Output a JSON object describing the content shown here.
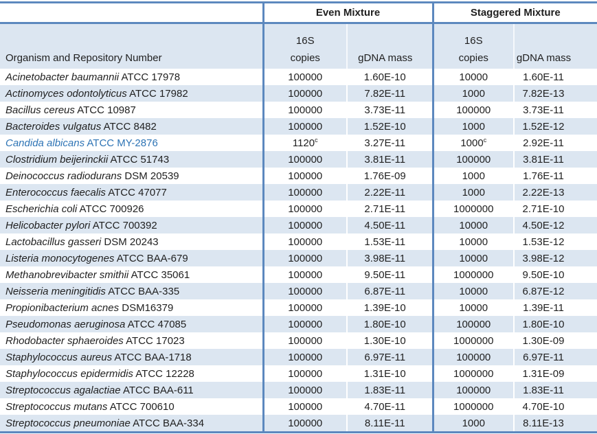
{
  "table": {
    "group_headers": {
      "even": "Even Mixture",
      "staggered": "Staggered Mixture"
    },
    "sub_headers": {
      "organism": "Organism and Repository Number",
      "copies_top": "16S",
      "copies_bottom": "copies",
      "gdna": "gDNA mass"
    },
    "colors": {
      "banding": "#dce6f1",
      "border": "#5c88be",
      "highlight_text": "#2e74b5",
      "text": "#1f1f1f"
    },
    "rows": [
      {
        "species": "Acinetobacter baumannii",
        "repository": "ATCC 17978",
        "even_copies": "100000",
        "even_gdna": "1.60E-10",
        "stag_copies": "10000",
        "stag_gdna": "1.60E-11",
        "highlight": false
      },
      {
        "species": "Actinomyces odontolyticus",
        "repository": "ATCC 17982",
        "even_copies": "100000",
        "even_gdna": "7.82E-11",
        "stag_copies": "1000",
        "stag_gdna": "7.82E-13",
        "highlight": false
      },
      {
        "species": "Bacillus cereus",
        "repository": "ATCC 10987",
        "even_copies": "100000",
        "even_gdna": "3.73E-11",
        "stag_copies": "100000",
        "stag_gdna": "3.73E-11",
        "highlight": false
      },
      {
        "species": "Bacteroides vulgatus",
        "repository": "ATCC 8482",
        "even_copies": "100000",
        "even_gdna": "1.52E-10",
        "stag_copies": "1000",
        "stag_gdna": "1.52E-12",
        "highlight": false
      },
      {
        "species": "Candida albicans",
        "repository": "ATCC MY-2876",
        "even_copies": "1120",
        "even_copies_sup": "c",
        "even_gdna": "3.27E-11",
        "stag_copies": "1000",
        "stag_copies_sup": "c",
        "stag_gdna": "2.92E-11",
        "highlight": true
      },
      {
        "species": "Clostridium beijerinckii",
        "repository": "ATCC 51743",
        "even_copies": "100000",
        "even_gdna": "3.81E-11",
        "stag_copies": "100000",
        "stag_gdna": "3.81E-11",
        "highlight": false
      },
      {
        "species": "Deinococcus radiodurans",
        "repository": "DSM 20539",
        "even_copies": "100000",
        "even_gdna": "1.76E-09",
        "stag_copies": "1000",
        "stag_gdna": "1.76E-11",
        "highlight": false
      },
      {
        "species": "Enterococcus faecalis",
        "repository": "ATCC 47077",
        "even_copies": "100000",
        "even_gdna": "2.22E-11",
        "stag_copies": "1000",
        "stag_gdna": "2.22E-13",
        "highlight": false
      },
      {
        "species": "Escherichia coli",
        "repository": "ATCC 700926",
        "even_copies": "100000",
        "even_gdna": "2.71E-11",
        "stag_copies": "1000000",
        "stag_gdna": "2.71E-10",
        "highlight": false
      },
      {
        "species": "Helicobacter pylori",
        "repository": "ATCC 700392",
        "even_copies": "100000",
        "even_gdna": "4.50E-11",
        "stag_copies": "10000",
        "stag_gdna": "4.50E-12",
        "highlight": false
      },
      {
        "species": "Lactobacillus gasseri",
        "repository": "DSM 20243",
        "even_copies": "100000",
        "even_gdna": "1.53E-11",
        "stag_copies": "10000",
        "stag_gdna": "1.53E-12",
        "highlight": false
      },
      {
        "species": "Listeria monocytogenes",
        "repository": "ATCC BAA-679",
        "even_copies": "100000",
        "even_gdna": "3.98E-11",
        "stag_copies": "10000",
        "stag_gdna": "3.98E-12",
        "highlight": false
      },
      {
        "species": "Methanobrevibacter smithii",
        "repository": "ATCC 35061",
        "even_copies": "100000",
        "even_gdna": "9.50E-11",
        "stag_copies": "1000000",
        "stag_gdna": "9.50E-10",
        "highlight": false
      },
      {
        "species": "Neisseria meningitidis",
        "repository": "ATCC BAA-335",
        "even_copies": "100000",
        "even_gdna": "6.87E-11",
        "stag_copies": "10000",
        "stag_gdna": "6.87E-12",
        "highlight": false
      },
      {
        "species": "Propionibacterium acnes",
        "repository": "DSM16379",
        "even_copies": "100000",
        "even_gdna": "1.39E-10",
        "stag_copies": "10000",
        "stag_gdna": "1.39E-11",
        "highlight": false
      },
      {
        "species": "Pseudomonas aeruginosa",
        "repository": "ATCC 47085",
        "even_copies": "100000",
        "even_gdna": "1.80E-10",
        "stag_copies": "100000",
        "stag_gdna": "1.80E-10",
        "highlight": false
      },
      {
        "species": "Rhodobacter sphaeroides",
        "repository": "ATCC 17023",
        "even_copies": "100000",
        "even_gdna": "1.30E-10",
        "stag_copies": "1000000",
        "stag_gdna": "1.30E-09",
        "highlight": false
      },
      {
        "species": "Staphylococcus aureus",
        "repository": "ATCC BAA-1718",
        "even_copies": "100000",
        "even_gdna": "6.97E-11",
        "stag_copies": "100000",
        "stag_gdna": "6.97E-11",
        "highlight": false
      },
      {
        "species": "Staphylococcus epidermidis",
        "repository": "ATCC 12228",
        "even_copies": "100000",
        "even_gdna": "1.31E-10",
        "stag_copies": "1000000",
        "stag_gdna": "1.31E-09",
        "highlight": false
      },
      {
        "species": "Streptococcus agalactiae",
        "repository": "ATCC BAA-611",
        "even_copies": "100000",
        "even_gdna": "1.83E-11",
        "stag_copies": "100000",
        "stag_gdna": "1.83E-11",
        "highlight": false
      },
      {
        "species": "Streptococcus mutans",
        "repository": "ATCC 700610",
        "even_copies": "100000",
        "even_gdna": "4.70E-11",
        "stag_copies": "1000000",
        "stag_gdna": "4.70E-10",
        "highlight": false
      },
      {
        "species": "Streptococcus pneumoniae",
        "repository": "ATCC BAA-334",
        "even_copies": "100000",
        "even_gdna": "8.11E-11",
        "stag_copies": "1000",
        "stag_gdna": "8.11E-13",
        "highlight": false
      }
    ]
  }
}
